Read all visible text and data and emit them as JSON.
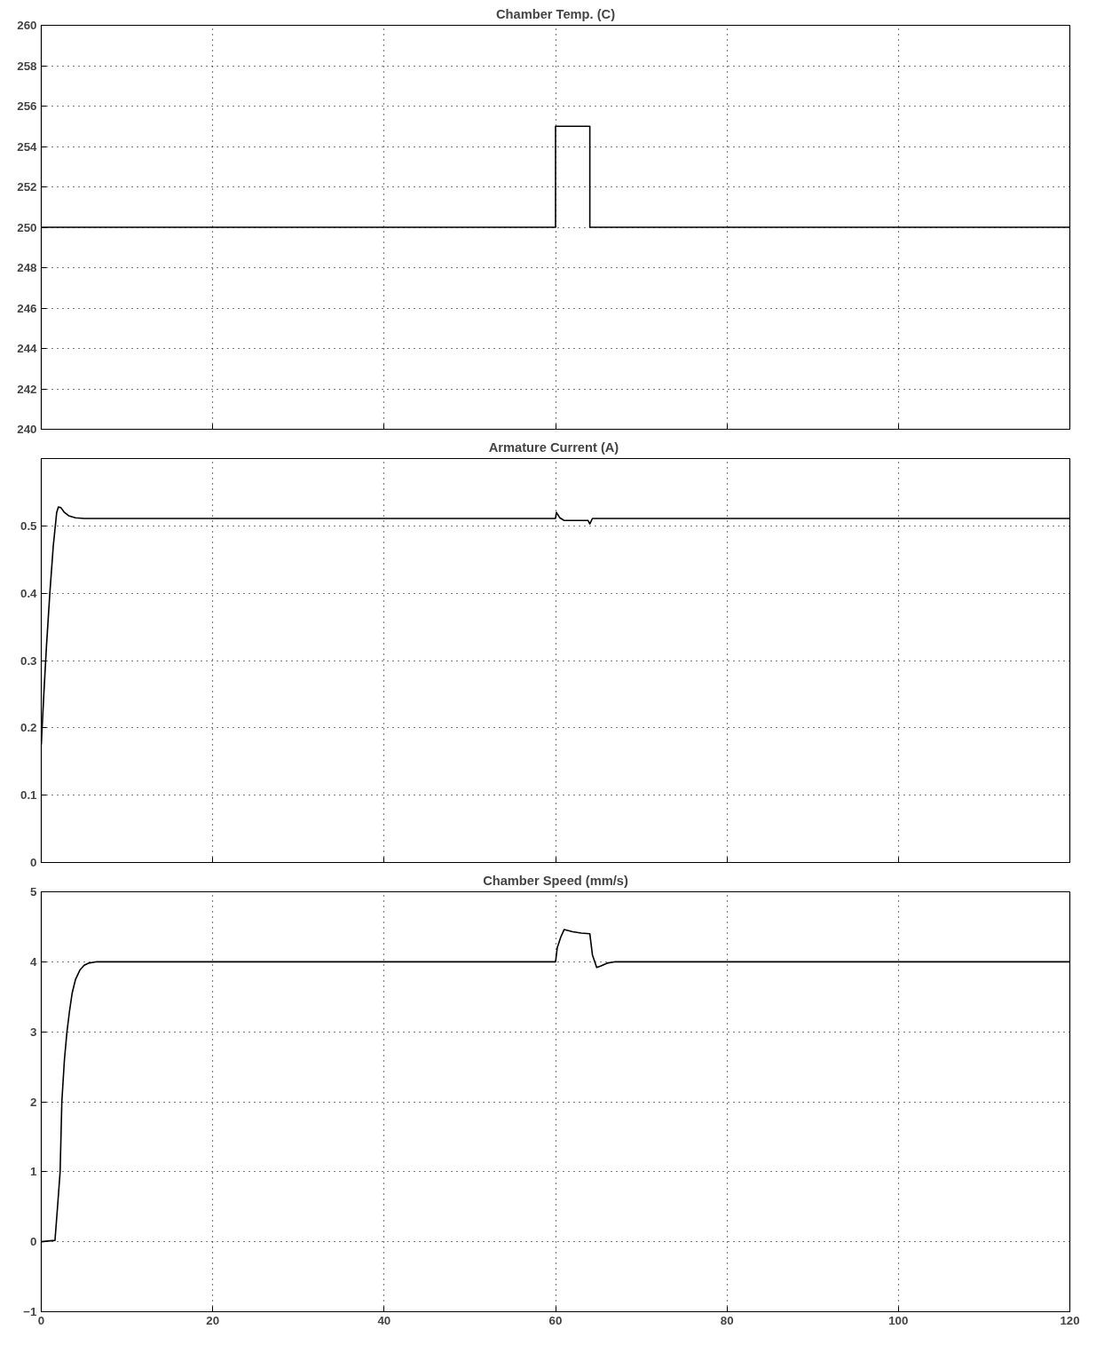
{
  "chart_data": [
    {
      "type": "line",
      "title": "Chamber Temp. (C)",
      "x": [
        0,
        60,
        60,
        64,
        64,
        120
      ],
      "series": [
        {
          "color": "#000000",
          "values": [
            250,
            250,
            255,
            255,
            250,
            250
          ]
        }
      ],
      "xlim": [
        0,
        120
      ],
      "xticks": [
        0,
        20,
        40,
        60,
        80,
        100,
        120
      ],
      "ylim": [
        240,
        260
      ],
      "yticks": [
        240,
        242,
        244,
        246,
        248,
        250,
        252,
        254,
        256,
        258,
        260
      ],
      "grid": true,
      "tick_labels": "y",
      "line_style": "solid"
    },
    {
      "type": "line",
      "title": "Armature Current  (A)",
      "x": [
        0,
        0.3,
        0.6,
        1.0,
        1.4,
        1.8,
        2.0,
        2.3,
        2.7,
        3.2,
        4.0,
        5.0,
        60,
        60.1,
        60.5,
        61,
        63.8,
        64,
        64.3,
        64.6,
        120
      ],
      "series": [
        {
          "color": "#000000",
          "values": [
            0.175,
            0.25,
            0.32,
            0.4,
            0.47,
            0.52,
            0.528,
            0.527,
            0.52,
            0.515,
            0.512,
            0.511,
            0.511,
            0.52,
            0.512,
            0.508,
            0.508,
            0.503,
            0.511,
            0.511,
            0.511
          ]
        }
      ],
      "xlim": [
        0,
        120
      ],
      "xticks": [
        0,
        20,
        40,
        60,
        80,
        100,
        120
      ],
      "ylim": [
        0,
        0.6
      ],
      "yticks": [
        0,
        0.1,
        0.2,
        0.3,
        0.4,
        0.5
      ],
      "grid": true,
      "tick_labels": "y",
      "line_style": "solid"
    },
    {
      "type": "line",
      "title": "Chamber Speed (mm/s)",
      "x": [
        0,
        1.6,
        1.9,
        2.2,
        2.4,
        2.7,
        3.0,
        3.3,
        3.6,
        4.0,
        4.5,
        5.0,
        5.5,
        6.5,
        60,
        60.2,
        60.6,
        61,
        62,
        63,
        64,
        64.3,
        64.8,
        65.3,
        66,
        67,
        120
      ],
      "series": [
        {
          "color": "#000000",
          "values": [
            0,
            0.02,
            0.5,
            1.0,
            2.0,
            2.6,
            3.0,
            3.3,
            3.55,
            3.75,
            3.88,
            3.95,
            3.98,
            4.0,
            4.0,
            4.2,
            4.35,
            4.46,
            4.43,
            4.41,
            4.4,
            4.1,
            3.92,
            3.94,
            3.98,
            4.0,
            4.0
          ]
        }
      ],
      "xlim": [
        0,
        120
      ],
      "xticks": [
        0,
        20,
        40,
        60,
        80,
        100,
        120
      ],
      "ylim": [
        -1,
        5
      ],
      "yticks": [
        -1,
        0,
        1,
        2,
        3,
        4,
        5
      ],
      "grid": true,
      "line_style": "solid"
    }
  ]
}
